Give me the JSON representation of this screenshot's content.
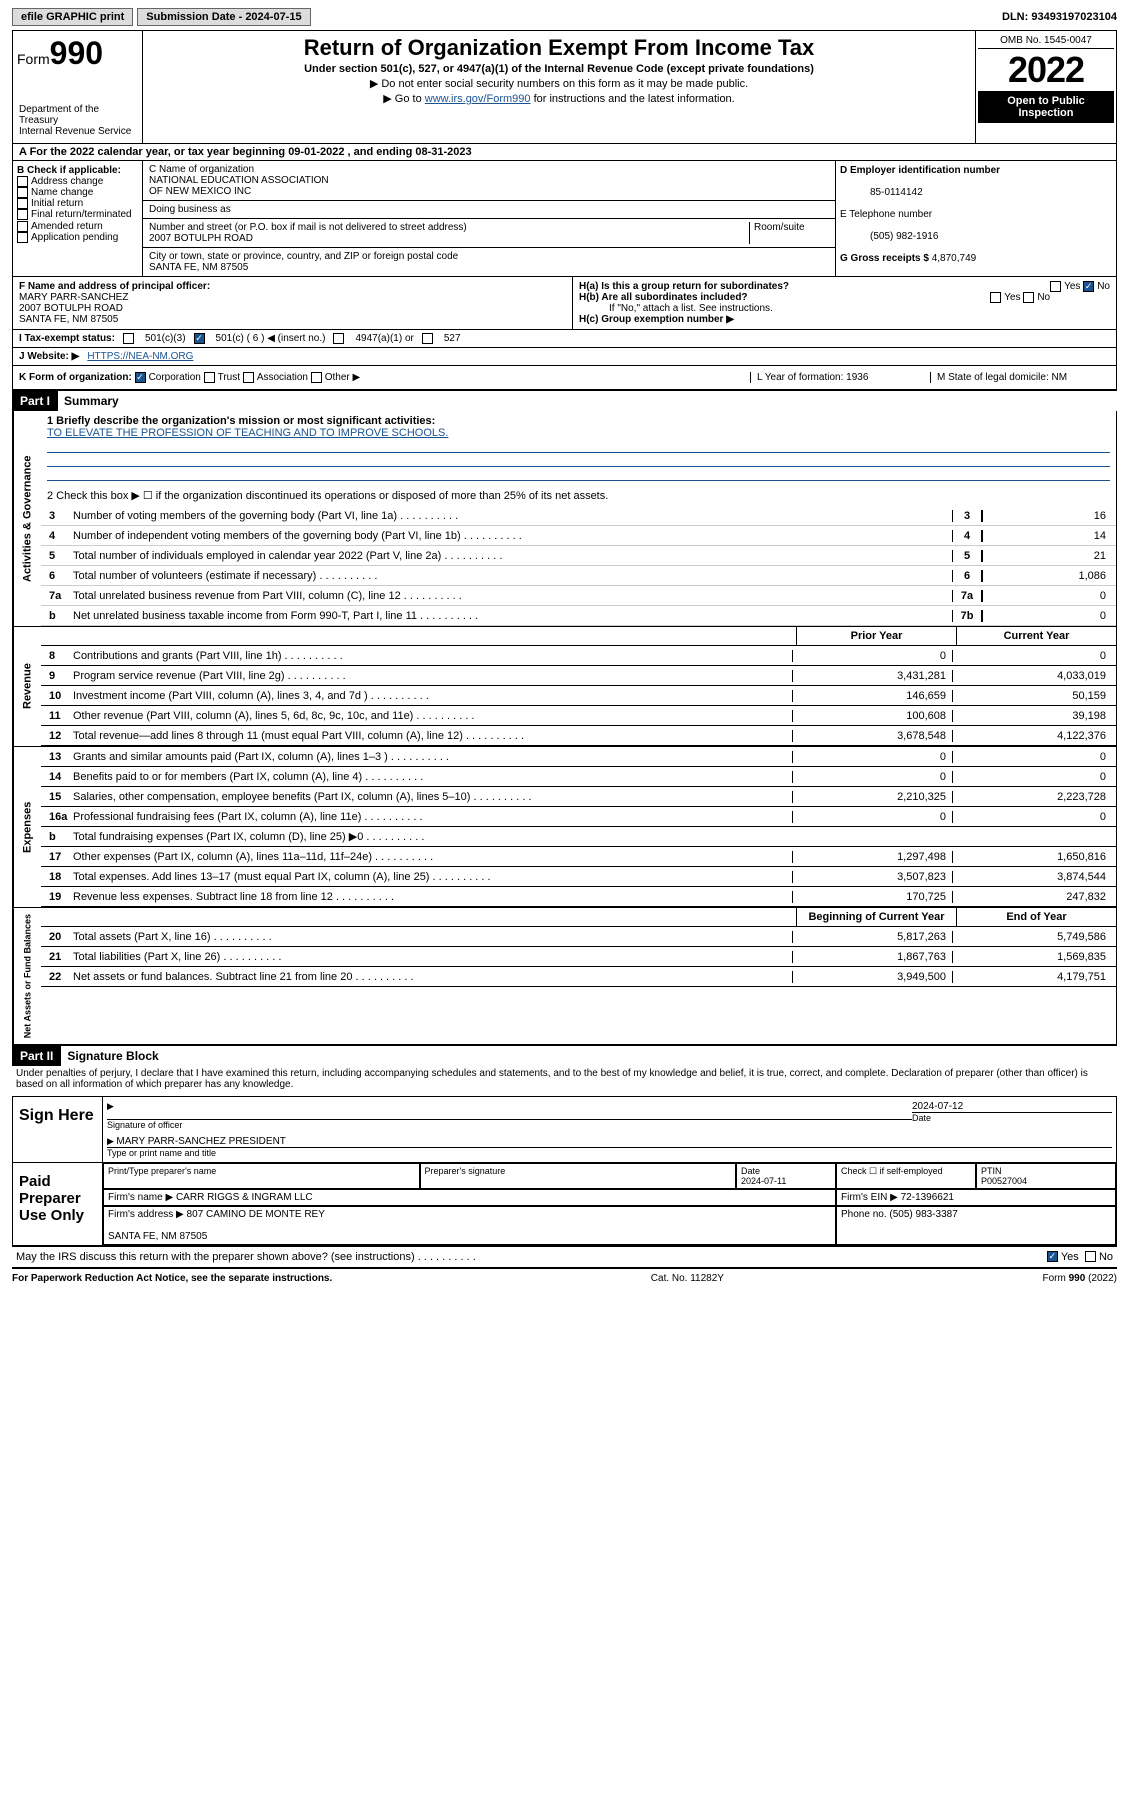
{
  "topbar": {
    "efile": "efile GRAPHIC print",
    "sub_label": "Submission Date - 2024-07-15",
    "dln": "DLN: 93493197023104"
  },
  "header": {
    "form_prefix": "Form",
    "form_num": "990",
    "dept": "Department of the Treasury\nInternal Revenue Service",
    "title": "Return of Organization Exempt From Income Tax",
    "sub1": "Under section 501(c), 527, or 4947(a)(1) of the Internal Revenue Code (except private foundations)",
    "sub2": "▶ Do not enter social security numbers on this form as it may be made public.",
    "sub3_pre": "▶ Go to ",
    "sub3_link": "www.irs.gov/Form990",
    "sub3_post": " for instructions and the latest information.",
    "omb": "OMB No. 1545-0047",
    "year": "2022",
    "open": "Open to Public Inspection"
  },
  "line_a": "A For the 2022 calendar year, or tax year beginning 09-01-2022   , and ending 08-31-2023",
  "box_b": {
    "title": "B Check if applicable:",
    "items": [
      "Address change",
      "Name change",
      "Initial return",
      "Final return/terminated",
      "Amended return",
      "Application pending"
    ]
  },
  "box_c": {
    "label_name": "C Name of organization",
    "name": "NATIONAL EDUCATION ASSOCIATION\nOF NEW MEXICO INC",
    "dba_label": "Doing business as",
    "addr_label": "Number and street (or P.O. box if mail is not delivered to street address)",
    "room_label": "Room/suite",
    "addr": "2007 BOTULPH ROAD",
    "city_label": "City or town, state or province, country, and ZIP or foreign postal code",
    "city": "SANTA FE, NM  87505"
  },
  "box_de": {
    "d_label": "D Employer identification number",
    "ein": "85-0114142",
    "e_label": "E Telephone number",
    "phone": "(505) 982-1916",
    "g_label": "G Gross receipts $",
    "gross": "4,870,749"
  },
  "box_f": {
    "label": "F Name and address of principal officer:",
    "name": "MARY PARR-SANCHEZ",
    "addr": "2007 BOTULPH ROAD\nSANTA FE, NM  87505"
  },
  "box_h": {
    "ha": "H(a)  Is this a group return for subordinates?",
    "hb": "H(b)  Are all subordinates included?",
    "hb_note": "If \"No,\" attach a list. See instructions.",
    "hc": "H(c)  Group exemption number ▶"
  },
  "row_i": {
    "label": "I   Tax-exempt status:",
    "opts": [
      "501(c)(3)",
      "501(c) ( 6 ) ◀ (insert no.)",
      "4947(a)(1) or",
      "527"
    ]
  },
  "row_j": {
    "label": "J   Website: ▶",
    "url": "HTTPS://NEA-NM.ORG"
  },
  "row_k": {
    "label": "K Form of organization:",
    "opts": [
      "Corporation",
      "Trust",
      "Association",
      "Other ▶"
    ],
    "l": "L Year of formation: 1936",
    "m": "M State of legal domicile: NM"
  },
  "part1": {
    "header": "Part I",
    "title": "Summary",
    "mission_label": "1   Briefly describe the organization's mission or most significant activities:",
    "mission": "TO ELEVATE THE PROFESSION OF TEACHING AND TO IMPROVE SCHOOLS.",
    "line2": "2   Check this box ▶ ☐  if the organization discontinued its operations or disposed of more than 25% of its net assets.",
    "gov_lines": [
      {
        "n": "3",
        "t": "Number of voting members of the governing body (Part VI, line 1a)",
        "box": "3",
        "v": "16"
      },
      {
        "n": "4",
        "t": "Number of independent voting members of the governing body (Part VI, line 1b)",
        "box": "4",
        "v": "14"
      },
      {
        "n": "5",
        "t": "Total number of individuals employed in calendar year 2022 (Part V, line 2a)",
        "box": "5",
        "v": "21"
      },
      {
        "n": "6",
        "t": "Total number of volunteers (estimate if necessary)",
        "box": "6",
        "v": "1,086"
      },
      {
        "n": "7a",
        "t": "Total unrelated business revenue from Part VIII, column (C), line 12",
        "box": "7a",
        "v": "0"
      },
      {
        "n": "b",
        "t": "Net unrelated business taxable income from Form 990-T, Part I, line 11",
        "box": "7b",
        "v": "0"
      }
    ],
    "col_prev": "Prior Year",
    "col_curr": "Current Year",
    "rev_lines": [
      {
        "n": "8",
        "t": "Contributions and grants (Part VIII, line 1h)",
        "p": "0",
        "c": "0"
      },
      {
        "n": "9",
        "t": "Program service revenue (Part VIII, line 2g)",
        "p": "3,431,281",
        "c": "4,033,019"
      },
      {
        "n": "10",
        "t": "Investment income (Part VIII, column (A), lines 3, 4, and 7d )",
        "p": "146,659",
        "c": "50,159"
      },
      {
        "n": "11",
        "t": "Other revenue (Part VIII, column (A), lines 5, 6d, 8c, 9c, 10c, and 11e)",
        "p": "100,608",
        "c": "39,198"
      },
      {
        "n": "12",
        "t": "Total revenue—add lines 8 through 11 (must equal Part VIII, column (A), line 12)",
        "p": "3,678,548",
        "c": "4,122,376"
      }
    ],
    "exp_lines": [
      {
        "n": "13",
        "t": "Grants and similar amounts paid (Part IX, column (A), lines 1–3 )",
        "p": "0",
        "c": "0"
      },
      {
        "n": "14",
        "t": "Benefits paid to or for members (Part IX, column (A), line 4)",
        "p": "0",
        "c": "0"
      },
      {
        "n": "15",
        "t": "Salaries, other compensation, employee benefits (Part IX, column (A), lines 5–10)",
        "p": "2,210,325",
        "c": "2,223,728"
      },
      {
        "n": "16a",
        "t": "Professional fundraising fees (Part IX, column (A), line 11e)",
        "p": "0",
        "c": "0"
      },
      {
        "n": "b",
        "t": "Total fundraising expenses (Part IX, column (D), line 25) ▶0",
        "p": "",
        "c": "",
        "gray": true
      },
      {
        "n": "17",
        "t": "Other expenses (Part IX, column (A), lines 11a–11d, 11f–24e)",
        "p": "1,297,498",
        "c": "1,650,816"
      },
      {
        "n": "18",
        "t": "Total expenses. Add lines 13–17 (must equal Part IX, column (A), line 25)",
        "p": "3,507,823",
        "c": "3,874,544"
      },
      {
        "n": "19",
        "t": "Revenue less expenses. Subtract line 18 from line 12",
        "p": "170,725",
        "c": "247,832"
      }
    ],
    "col_begin": "Beginning of Current Year",
    "col_end": "End of Year",
    "net_lines": [
      {
        "n": "20",
        "t": "Total assets (Part X, line 16)",
        "p": "5,817,263",
        "c": "5,749,586"
      },
      {
        "n": "21",
        "t": "Total liabilities (Part X, line 26)",
        "p": "1,867,763",
        "c": "1,569,835"
      },
      {
        "n": "22",
        "t": "Net assets or fund balances. Subtract line 21 from line 20",
        "p": "3,949,500",
        "c": "4,179,751"
      }
    ],
    "vert_gov": "Activities & Governance",
    "vert_rev": "Revenue",
    "vert_exp": "Expenses",
    "vert_net": "Net Assets or Fund Balances"
  },
  "part2": {
    "header": "Part II",
    "title": "Signature Block",
    "decl": "Under penalties of perjury, I declare that I have examined this return, including accompanying schedules and statements, and to the best of my knowledge and belief, it is true, correct, and complete. Declaration of preparer (other than officer) is based on all information of which preparer has any knowledge.",
    "sign_here": "Sign Here",
    "sig_officer": "Signature of officer",
    "sig_date": "2024-07-12",
    "date_label": "Date",
    "officer_name": "MARY PARR-SANCHEZ  PRESIDENT",
    "type_label": "Type or print name and title",
    "paid_label": "Paid Preparer Use Only",
    "prep_name_label": "Print/Type preparer's name",
    "prep_sig_label": "Preparer's signature",
    "prep_date_label": "Date",
    "prep_date": "2024-07-11",
    "check_self": "Check ☐ if self-employed",
    "ptin_label": "PTIN",
    "ptin": "P00527004",
    "firm_name_label": "Firm's name   ▶",
    "firm_name": "CARR RIGGS & INGRAM LLC",
    "firm_ein_label": "Firm's EIN ▶",
    "firm_ein": "72-1396621",
    "firm_addr_label": "Firm's address ▶",
    "firm_addr": "807 CAMINO DE MONTE REY\n\nSANTA FE, NM  87505",
    "firm_phone_label": "Phone no.",
    "firm_phone": "(505) 983-3387",
    "discuss": "May the IRS discuss this return with the preparer shown above? (see instructions)",
    "yes": "Yes",
    "no": "No"
  },
  "footer": {
    "left": "For Paperwork Reduction Act Notice, see the separate instructions.",
    "mid": "Cat. No. 11282Y",
    "right": "Form 990 (2022)"
  }
}
